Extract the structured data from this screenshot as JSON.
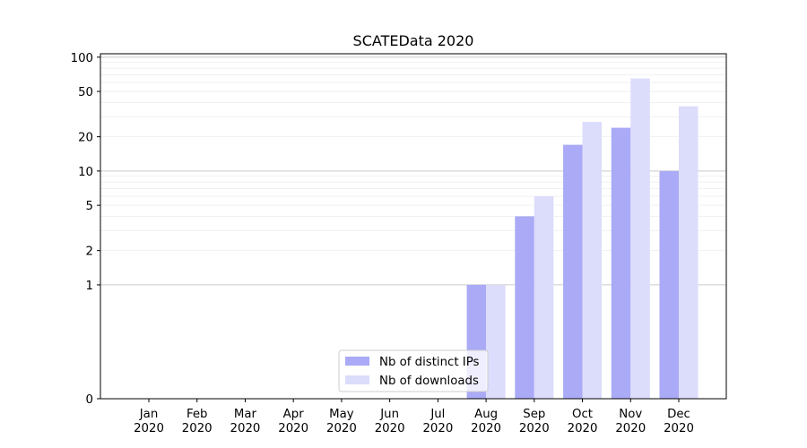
{
  "chart_data": {
    "type": "bar",
    "title": "SCATEData 2020",
    "xlabel": "",
    "ylabel": "",
    "y_scale": "symlog",
    "ylim": [
      0,
      100
    ],
    "y_ticks": [
      0,
      1,
      2,
      5,
      10,
      20,
      50,
      100
    ],
    "y_tick_labels": [
      "0",
      "1",
      "2",
      "5",
      "10",
      "20",
      "50",
      "100"
    ],
    "grid": true,
    "legend_position": "lower-center",
    "categories": [
      {
        "month": "Jan",
        "year": "2020"
      },
      {
        "month": "Feb",
        "year": "2020"
      },
      {
        "month": "Mar",
        "year": "2020"
      },
      {
        "month": "Apr",
        "year": "2020"
      },
      {
        "month": "May",
        "year": "2020"
      },
      {
        "month": "Jun",
        "year": "2020"
      },
      {
        "month": "Jul",
        "year": "2020"
      },
      {
        "month": "Aug",
        "year": "2020"
      },
      {
        "month": "Sep",
        "year": "2020"
      },
      {
        "month": "Oct",
        "year": "2020"
      },
      {
        "month": "Nov",
        "year": "2020"
      },
      {
        "month": "Dec",
        "year": "2020"
      }
    ],
    "series": [
      {
        "name": "Nb of distinct IPs",
        "color": "#aaaaf7",
        "values": [
          0,
          0,
          0,
          0,
          0,
          0,
          0,
          1,
          4,
          17,
          24,
          10
        ]
      },
      {
        "name": "Nb of downloads",
        "color": "#dcdcfb",
        "values": [
          0,
          0,
          0,
          0,
          0,
          0,
          0,
          1,
          6,
          27,
          65,
          37
        ]
      }
    ]
  }
}
